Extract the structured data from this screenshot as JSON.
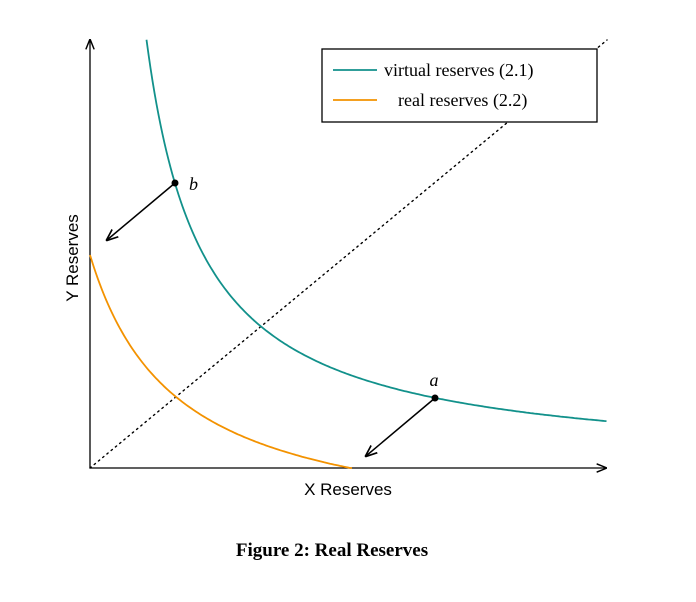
{
  "figure": {
    "x_axis_label": "X Reserves",
    "y_axis_label": "Y Reserves",
    "legend": [
      "virtual reserves (2.1)",
      "real reserves (2.2)"
    ],
    "points": [
      "a",
      "b"
    ],
    "caption": "Figure 2: Real Reserves"
  }
}
